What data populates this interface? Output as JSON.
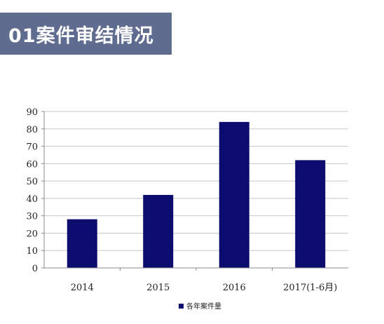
{
  "header": {
    "title": "01案件审结情况",
    "banner_color": "#5f6c8f"
  },
  "chart_data": {
    "type": "bar",
    "categories": [
      "2014",
      "2015",
      "2016",
      "2017(1-6月)"
    ],
    "series": [
      {
        "name": "各年案件量",
        "values": [
          28,
          42,
          84,
          62
        ],
        "color": "#0c0c6e"
      }
    ],
    "ylim": [
      0,
      90
    ],
    "yticks": [
      0,
      10,
      20,
      30,
      40,
      50,
      60,
      70,
      80,
      90
    ],
    "grid": true,
    "legend": "bottom"
  }
}
